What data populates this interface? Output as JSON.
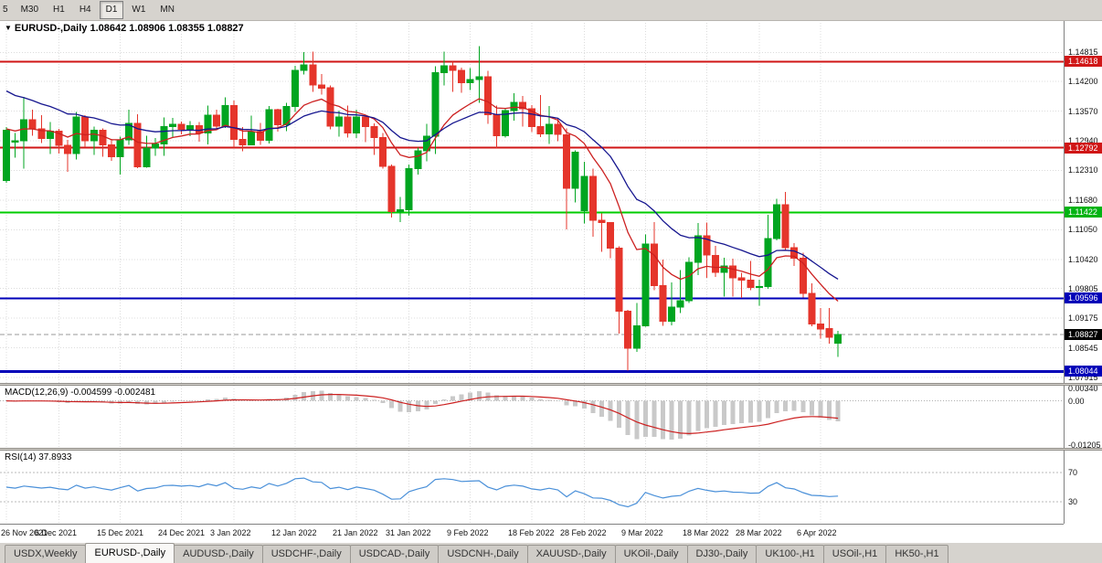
{
  "toolbar": {
    "buttons": [
      {
        "label": "5",
        "active": false
      },
      {
        "label": "M30",
        "active": false
      },
      {
        "label": "H1",
        "active": false
      },
      {
        "label": "H4",
        "active": false
      },
      {
        "label": "D1",
        "active": true
      },
      {
        "label": "W1",
        "active": false
      },
      {
        "label": "MN",
        "active": false
      }
    ]
  },
  "chart_header": {
    "arrow": "▼",
    "symbol": "EURUSD-,Daily",
    "ohlc": "1.08642 1.08906 1.08355 1.08827"
  },
  "macd_panel": {
    "label": "MACD(12,26,9)",
    "values": "-0.004599 -0.002481"
  },
  "rsi_panel": {
    "label": "RSI(14)",
    "value": "37.8933"
  },
  "tabs": [
    {
      "label": "USDX,Weekly",
      "active": false
    },
    {
      "label": "EURUSD-,Daily",
      "active": true
    },
    {
      "label": "AUDUSD-,Daily",
      "active": false
    },
    {
      "label": "USDCHF-,Daily",
      "active": false
    },
    {
      "label": "USDCAD-,Daily",
      "active": false
    },
    {
      "label": "USDCNH-,Daily",
      "active": false
    },
    {
      "label": "XAUUSD-,Daily",
      "active": false
    },
    {
      "label": "UKOil-,Daily",
      "active": false
    },
    {
      "label": "DJ30-,Daily",
      "active": false
    },
    {
      "label": "UK100-,H1",
      "active": false
    },
    {
      "label": "USOil-,H1",
      "active": false
    },
    {
      "label": "HK50-,H1",
      "active": false
    }
  ],
  "chart_data": {
    "type": "candlestick",
    "symbol": "EURUSD-",
    "timeframe": "Daily",
    "y_range": [
      1.078,
      1.155
    ],
    "colors": {
      "up": "#00A520",
      "down": "#E5352B",
      "grid": "#dcdcdc"
    },
    "y_ticks": [
      "1.14815",
      "1.14200",
      "1.13570",
      "1.12940",
      "1.12310",
      "1.11680",
      "1.11050",
      "1.10420",
      "1.09805",
      "1.09175",
      "1.08545",
      "1.07915"
    ],
    "badges": [
      {
        "text": "1.14618",
        "price": 1.14618,
        "bg": "#d01616"
      },
      {
        "text": "1.12792",
        "price": 1.12792,
        "bg": "#d01616"
      },
      {
        "text": "1.11422",
        "price": 1.11422,
        "bg": "#00b312"
      },
      {
        "text": "1.09596",
        "price": 1.09596,
        "bg": "#0000b8"
      },
      {
        "text": "1.08827",
        "price": 1.08827,
        "bg": "#000000"
      },
      {
        "text": "1.08044",
        "price": 1.08044,
        "bg": "#0000b8"
      }
    ],
    "hlines": [
      {
        "price": 1.14618,
        "color": "#d01616",
        "width": 2
      },
      {
        "price": 1.12792,
        "color": "#d01616",
        "width": 2
      },
      {
        "price": 1.11422,
        "color": "#00cc00",
        "width": 2
      },
      {
        "price": 1.09596,
        "color": "#0000b8",
        "width": 2
      },
      {
        "price": 1.08044,
        "color": "#0000b8",
        "width": 3
      }
    ],
    "bid_line": {
      "price": 1.08827,
      "color": "#9a9a9a"
    },
    "moving_averages": [
      {
        "period": 10,
        "color": "#cc2020",
        "seed": 1.132
      },
      {
        "period": 21,
        "color": "#16168f",
        "seed": 1.1408
      }
    ],
    "macd": {
      "fast": 12,
      "slow": 26,
      "signal": 9,
      "range": [
        -0.01205,
        0.0034
      ],
      "hist_color": "#c9c9c9",
      "signal_color": "#cc2020",
      "ticks": [
        {
          "text": "0.00340",
          "value": 0.0034
        },
        {
          "text": "0.00",
          "value": 0
        },
        {
          "text": "-0.01205",
          "value": -0.01205
        }
      ]
    },
    "rsi": {
      "period": 14,
      "color": "#4a90d9",
      "levels": [
        70,
        30
      ],
      "ticks": [
        {
          "text": "70",
          "value": 70
        },
        {
          "text": "30",
          "value": 30
        }
      ]
    },
    "x_labels": [
      {
        "text": "26 Nov 2021",
        "index": 0
      },
      {
        "text": "6 Dec 2021",
        "index": 6
      },
      {
        "text": "15 Dec 2021",
        "index": 13
      },
      {
        "text": "24 Dec 2021",
        "index": 20
      },
      {
        "text": "3 Jan 2022",
        "index": 26
      },
      {
        "text": "12 Jan 2022",
        "index": 33
      },
      {
        "text": "21 Jan 2022",
        "index": 40
      },
      {
        "text": "31 Jan 2022",
        "index": 46
      },
      {
        "text": "9 Feb 2022",
        "index": 53
      },
      {
        "text": "18 Feb 2022",
        "index": 60
      },
      {
        "text": "28 Feb 2022",
        "index": 66
      },
      {
        "text": "9 Mar 2022",
        "index": 73
      },
      {
        "text": "18 Mar 2022",
        "index": 80
      },
      {
        "text": "28 Mar 2022",
        "index": 86
      },
      {
        "text": "6 Apr 2022",
        "index": 93
      }
    ],
    "ohlc": [
      [
        1.121,
        1.1323,
        1.1205,
        1.1316
      ],
      [
        1.1291,
        1.131,
        1.1258,
        1.1294
      ],
      [
        1.1294,
        1.1387,
        1.1235,
        1.1339
      ],
      [
        1.1339,
        1.136,
        1.1305,
        1.1319
      ],
      [
        1.1319,
        1.1348,
        1.1289,
        1.1299
      ],
      [
        1.1299,
        1.1334,
        1.1266,
        1.1314
      ],
      [
        1.1314,
        1.1319,
        1.1267,
        1.1284
      ],
      [
        1.1284,
        1.1296,
        1.1228,
        1.1267
      ],
      [
        1.1267,
        1.1355,
        1.1254,
        1.1344
      ],
      [
        1.1344,
        1.1348,
        1.128,
        1.1294
      ],
      [
        1.1294,
        1.1324,
        1.1264,
        1.1316
      ],
      [
        1.1316,
        1.132,
        1.126,
        1.1285
      ],
      [
        1.1285,
        1.1298,
        1.1251,
        1.126
      ],
      [
        1.126,
        1.1303,
        1.1222,
        1.1296
      ],
      [
        1.1296,
        1.136,
        1.1285,
        1.1331
      ],
      [
        1.1331,
        1.135,
        1.1236,
        1.1239
      ],
      [
        1.1239,
        1.1305,
        1.1237,
        1.1278
      ],
      [
        1.1278,
        1.13,
        1.1262,
        1.1287
      ],
      [
        1.1287,
        1.1343,
        1.1262,
        1.1324
      ],
      [
        1.1324,
        1.1342,
        1.1302,
        1.1329
      ],
      [
        1.1329,
        1.1335,
        1.1308,
        1.1318
      ],
      [
        1.1318,
        1.1336,
        1.1304,
        1.1326
      ],
      [
        1.1326,
        1.1334,
        1.1292,
        1.131
      ],
      [
        1.131,
        1.1369,
        1.1286,
        1.1348
      ],
      [
        1.1348,
        1.136,
        1.1316,
        1.1325
      ],
      [
        1.1325,
        1.1386,
        1.1321,
        1.1369
      ],
      [
        1.1369,
        1.1379,
        1.1279,
        1.1297
      ],
      [
        1.1297,
        1.1323,
        1.1272,
        1.1285
      ],
      [
        1.1285,
        1.1347,
        1.1284,
        1.1313
      ],
      [
        1.1313,
        1.1332,
        1.1285,
        1.1295
      ],
      [
        1.1295,
        1.1368,
        1.1288,
        1.136
      ],
      [
        1.136,
        1.1362,
        1.1313,
        1.1328
      ],
      [
        1.1328,
        1.1374,
        1.1314,
        1.1367
      ],
      [
        1.1367,
        1.1453,
        1.1355,
        1.1443
      ],
      [
        1.1443,
        1.1482,
        1.1435,
        1.1455
      ],
      [
        1.1455,
        1.1483,
        1.1398,
        1.1412
      ],
      [
        1.1412,
        1.1436,
        1.1392,
        1.1406
      ],
      [
        1.1406,
        1.1411,
        1.1318,
        1.1325
      ],
      [
        1.1325,
        1.1358,
        1.1303,
        1.1344
      ],
      [
        1.1344,
        1.1369,
        1.1301,
        1.131
      ],
      [
        1.131,
        1.136,
        1.13,
        1.1344
      ],
      [
        1.1344,
        1.1349,
        1.1291,
        1.1324
      ],
      [
        1.1324,
        1.1331,
        1.1264,
        1.1301
      ],
      [
        1.1301,
        1.131,
        1.1235,
        1.124
      ],
      [
        1.124,
        1.1244,
        1.1131,
        1.1144
      ],
      [
        1.1144,
        1.1175,
        1.1121,
        1.1148
      ],
      [
        1.1148,
        1.1244,
        1.1135,
        1.1235
      ],
      [
        1.1235,
        1.1279,
        1.1222,
        1.1273
      ],
      [
        1.1273,
        1.133,
        1.125,
        1.1304
      ],
      [
        1.1304,
        1.1452,
        1.1266,
        1.1438
      ],
      [
        1.1438,
        1.1483,
        1.1411,
        1.1453
      ],
      [
        1.1453,
        1.1462,
        1.1398,
        1.1443
      ],
      [
        1.1443,
        1.1449,
        1.1396,
        1.1417
      ],
      [
        1.1417,
        1.1448,
        1.1402,
        1.1424
      ],
      [
        1.1424,
        1.1495,
        1.1374,
        1.143
      ],
      [
        1.143,
        1.1442,
        1.133,
        1.1349
      ],
      [
        1.1349,
        1.1369,
        1.1278,
        1.1305
      ],
      [
        1.1305,
        1.1364,
        1.1301,
        1.1358
      ],
      [
        1.1358,
        1.1395,
        1.1337,
        1.1375
      ],
      [
        1.1375,
        1.1389,
        1.1324,
        1.1362
      ],
      [
        1.1362,
        1.137,
        1.1312,
        1.1324
      ],
      [
        1.1324,
        1.1391,
        1.1302,
        1.1308
      ],
      [
        1.1308,
        1.1368,
        1.1287,
        1.1329
      ],
      [
        1.1329,
        1.1342,
        1.1293,
        1.1307
      ],
      [
        1.1307,
        1.132,
        1.1106,
        1.1193
      ],
      [
        1.1193,
        1.1274,
        1.1163,
        1.127
      ],
      [
        1.1146,
        1.1249,
        1.1118,
        1.1218
      ],
      [
        1.1218,
        1.1235,
        1.109,
        1.1125
      ],
      [
        1.1125,
        1.114,
        1.1058,
        1.112
      ],
      [
        1.112,
        1.1121,
        1.1045,
        1.1066
      ],
      [
        1.1066,
        1.107,
        1.0885,
        1.0932
      ],
      [
        1.0932,
        1.0935,
        1.0806,
        1.0854
      ],
      [
        1.0854,
        1.095,
        1.0846,
        1.0901
      ],
      [
        1.0901,
        1.1095,
        1.0899,
        1.1075
      ],
      [
        1.1075,
        1.1121,
        1.0977,
        1.0987
      ],
      [
        1.0987,
        1.1042,
        1.0901,
        1.0911
      ],
      [
        1.0911,
        1.0993,
        1.0902,
        1.0941
      ],
      [
        1.0941,
        1.102,
        1.0928,
        1.0955
      ],
      [
        1.0955,
        1.1047,
        1.095,
        1.1036
      ],
      [
        1.1036,
        1.1119,
        1.1009,
        1.1092
      ],
      [
        1.1092,
        1.112,
        1.1003,
        1.1051
      ],
      [
        1.1051,
        1.1071,
        1.1005,
        1.1015
      ],
      [
        1.1015,
        1.1046,
        1.0963,
        1.1028
      ],
      [
        1.1028,
        1.1044,
        1.0963,
        1.1003
      ],
      [
        1.1003,
        1.1014,
        1.096,
        1.0998
      ],
      [
        1.0998,
        1.1039,
        1.0977,
        1.0983
      ],
      [
        1.0983,
        1.0999,
        1.0944,
        1.0985
      ],
      [
        1.0985,
        1.1137,
        1.098,
        1.1086
      ],
      [
        1.1086,
        1.1171,
        1.1083,
        1.1158
      ],
      [
        1.1158,
        1.1185,
        1.1061,
        1.1067
      ],
      [
        1.1067,
        1.1077,
        1.1028,
        1.1045
      ],
      [
        1.1045,
        1.1056,
        1.0961,
        1.097
      ],
      [
        1.097,
        1.0991,
        1.09,
        1.0905
      ],
      [
        1.0905,
        1.0939,
        1.0874,
        1.0895
      ],
      [
        1.0895,
        1.0939,
        1.0863,
        1.0877
      ],
      [
        1.08642,
        1.08906,
        1.08355,
        1.08827
      ]
    ]
  }
}
